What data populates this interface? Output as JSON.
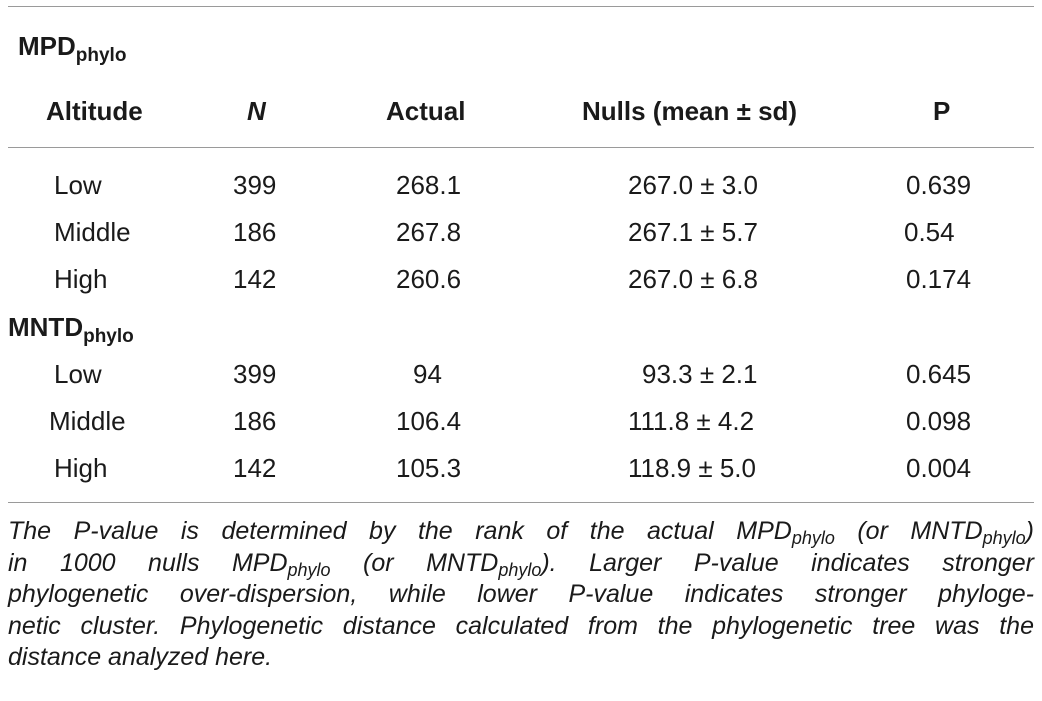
{
  "table": {
    "section1": {
      "title": "MPD",
      "title_sub": "phylo"
    },
    "section2": {
      "title": "MNTD",
      "title_sub": "phylo"
    },
    "headers": {
      "altitude": "Altitude",
      "n": "N",
      "actual": "Actual",
      "nulls": "Nulls (mean ± sd)",
      "p": "P"
    },
    "mpd_rows": [
      {
        "altitude": "Low",
        "n": "399",
        "actual": "268.1",
        "nulls": "267.0 ± 3.0",
        "p": "0.639"
      },
      {
        "altitude": "Middle",
        "n": "186",
        "actual": "267.8",
        "nulls": "267.1 ± 5.7",
        "p": "0.54"
      },
      {
        "altitude": "High",
        "n": "142",
        "actual": "260.6",
        "nulls": "267.0 ± 6.8",
        "p": "0.174"
      }
    ],
    "mntd_rows": [
      {
        "altitude": "Low",
        "n": "399",
        "actual": "94",
        "nulls": "93.3 ± 2.1",
        "p": "0.645"
      },
      {
        "altitude": "Middle",
        "n": "186",
        "actual": "106.4",
        "nulls": "111.8 ± 4.2",
        "p": "0.098"
      },
      {
        "altitude": "High",
        "n": "142",
        "actual": "105.3",
        "nulls": "118.9 ± 5.0",
        "p": "0.004"
      }
    ]
  },
  "caption": {
    "l1_a": "The P-value is determined by the rank of the actual MPD",
    "l1_sub1": "phylo",
    "l1_b": " (or MNTD",
    "l1_sub2": "phylo",
    "l1_c": ")",
    "l2_a": "in 1000 nulls MPD",
    "l2_sub1": "phylo",
    "l2_b": " (or MNTD",
    "l2_sub2": "phylo",
    "l2_c": "). Larger P-value indicates stronger",
    "l3": "phylogenetic over-dispersion, while lower P-value indicates stronger phyloge-",
    "l4": "netic cluster. Phylogenetic distance calculated from the phylogenetic tree was the",
    "l5": "distance analyzed here."
  }
}
